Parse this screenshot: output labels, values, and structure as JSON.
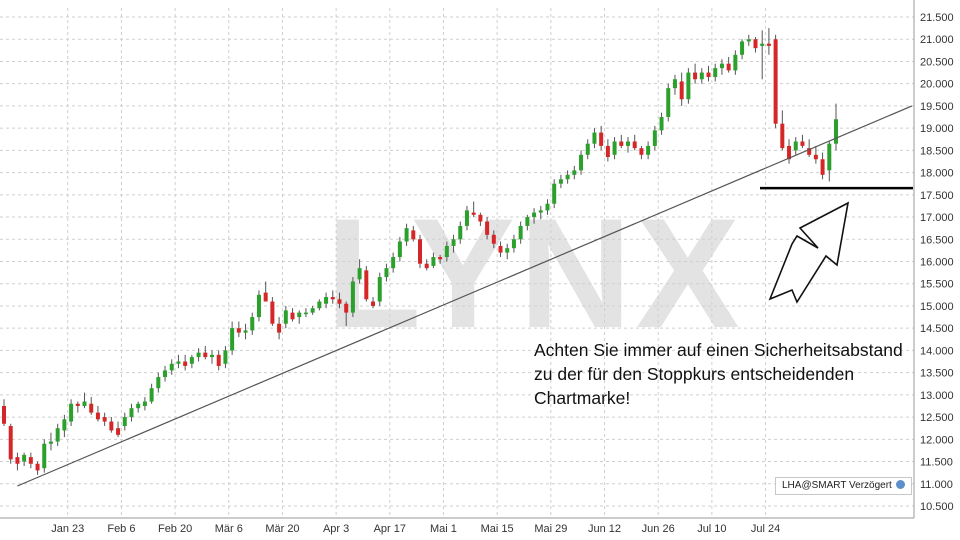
{
  "chart_data": {
    "type": "candlestick",
    "watermark": "LYNX",
    "y_ticks": [
      "10.500",
      "11.000",
      "11.500",
      "12.000",
      "12.500",
      "13.000",
      "13.500",
      "14.000",
      "14.500",
      "15.000",
      "15.500",
      "16.000",
      "16.500",
      "17.000",
      "17.500",
      "18.000",
      "18.500",
      "19.000",
      "19.500",
      "20.000",
      "20.500",
      "21.000",
      "21.500"
    ],
    "ylim": [
      10.3,
      21.7
    ],
    "x_ticks": [
      "Jan 23",
      "Feb 6",
      "Feb 20",
      "Mär 6",
      "Mär 20",
      "Apr 3",
      "Apr 17",
      "Mai 1",
      "Mai 15",
      "Mai 29",
      "Jun 12",
      "Jun 26",
      "Jul 10",
      "Jul 24"
    ],
    "grid": true,
    "colors": {
      "up": "#2ca02c",
      "down": "#d62728",
      "grid": "#cfcfcf",
      "line": "#555555"
    },
    "candles": [
      {
        "o": 12.75,
        "h": 12.9,
        "l": 12.3,
        "c": 12.35
      },
      {
        "o": 12.3,
        "h": 12.35,
        "l": 11.45,
        "c": 11.55
      },
      {
        "o": 11.6,
        "h": 11.7,
        "l": 11.3,
        "c": 11.45
      },
      {
        "o": 11.5,
        "h": 11.7,
        "l": 11.4,
        "c": 11.65
      },
      {
        "o": 11.6,
        "h": 11.7,
        "l": 11.35,
        "c": 11.45
      },
      {
        "o": 11.45,
        "h": 11.5,
        "l": 11.2,
        "c": 11.3
      },
      {
        "o": 11.35,
        "h": 12.0,
        "l": 11.25,
        "c": 11.9
      },
      {
        "o": 11.9,
        "h": 12.15,
        "l": 11.75,
        "c": 11.95
      },
      {
        "o": 11.95,
        "h": 12.35,
        "l": 11.85,
        "c": 12.25
      },
      {
        "o": 12.2,
        "h": 12.55,
        "l": 12.05,
        "c": 12.45
      },
      {
        "o": 12.4,
        "h": 12.9,
        "l": 12.3,
        "c": 12.8
      },
      {
        "o": 12.8,
        "h": 12.85,
        "l": 12.6,
        "c": 12.75
      },
      {
        "o": 12.75,
        "h": 13.05,
        "l": 12.7,
        "c": 12.85
      },
      {
        "o": 12.8,
        "h": 12.95,
        "l": 12.55,
        "c": 12.6
      },
      {
        "o": 12.6,
        "h": 12.75,
        "l": 12.4,
        "c": 12.45
      },
      {
        "o": 12.5,
        "h": 12.6,
        "l": 12.3,
        "c": 12.4
      },
      {
        "o": 12.4,
        "h": 12.5,
        "l": 12.15,
        "c": 12.2
      },
      {
        "o": 12.25,
        "h": 12.4,
        "l": 12.05,
        "c": 12.1
      },
      {
        "o": 12.3,
        "h": 12.6,
        "l": 12.2,
        "c": 12.5
      },
      {
        "o": 12.5,
        "h": 12.8,
        "l": 12.4,
        "c": 12.7
      },
      {
        "o": 12.7,
        "h": 12.85,
        "l": 12.6,
        "c": 12.8
      },
      {
        "o": 12.75,
        "h": 12.95,
        "l": 12.65,
        "c": 12.85
      },
      {
        "o": 12.85,
        "h": 13.25,
        "l": 12.8,
        "c": 13.15
      },
      {
        "o": 13.15,
        "h": 13.5,
        "l": 13.05,
        "c": 13.4
      },
      {
        "o": 13.4,
        "h": 13.65,
        "l": 13.3,
        "c": 13.55
      },
      {
        "o": 13.55,
        "h": 13.8,
        "l": 13.45,
        "c": 13.7
      },
      {
        "o": 13.7,
        "h": 13.9,
        "l": 13.6,
        "c": 13.75
      },
      {
        "o": 13.75,
        "h": 13.9,
        "l": 13.55,
        "c": 13.65
      },
      {
        "o": 13.7,
        "h": 13.9,
        "l": 13.6,
        "c": 13.85
      },
      {
        "o": 13.85,
        "h": 14.05,
        "l": 13.75,
        "c": 13.95
      },
      {
        "o": 13.95,
        "h": 14.1,
        "l": 13.8,
        "c": 13.85
      },
      {
        "o": 13.85,
        "h": 14.0,
        "l": 13.7,
        "c": 13.9
      },
      {
        "o": 13.9,
        "h": 14.0,
        "l": 13.55,
        "c": 13.65
      },
      {
        "o": 13.7,
        "h": 14.1,
        "l": 13.6,
        "c": 14.0
      },
      {
        "o": 14.0,
        "h": 14.65,
        "l": 13.9,
        "c": 14.5
      },
      {
        "o": 14.5,
        "h": 14.65,
        "l": 14.3,
        "c": 14.4
      },
      {
        "o": 14.4,
        "h": 14.6,
        "l": 14.25,
        "c": 14.45
      },
      {
        "o": 14.45,
        "h": 14.85,
        "l": 14.35,
        "c": 14.75
      },
      {
        "o": 14.75,
        "h": 15.35,
        "l": 14.65,
        "c": 15.25
      },
      {
        "o": 15.3,
        "h": 15.55,
        "l": 15.1,
        "c": 15.1
      },
      {
        "o": 15.1,
        "h": 15.2,
        "l": 14.55,
        "c": 14.6
      },
      {
        "o": 14.6,
        "h": 14.75,
        "l": 14.25,
        "c": 14.4
      },
      {
        "o": 14.6,
        "h": 15.0,
        "l": 14.5,
        "c": 14.9
      },
      {
        "o": 14.85,
        "h": 14.95,
        "l": 14.65,
        "c": 14.7
      },
      {
        "o": 14.75,
        "h": 14.9,
        "l": 14.6,
        "c": 14.85
      },
      {
        "o": 14.85,
        "h": 14.95,
        "l": 14.75,
        "c": 14.85
      },
      {
        "o": 14.85,
        "h": 15.0,
        "l": 14.8,
        "c": 14.95
      },
      {
        "o": 14.95,
        "h": 15.15,
        "l": 14.9,
        "c": 15.1
      },
      {
        "o": 15.05,
        "h": 15.3,
        "l": 14.95,
        "c": 15.2
      },
      {
        "o": 15.2,
        "h": 15.35,
        "l": 15.05,
        "c": 15.15
      },
      {
        "o": 15.15,
        "h": 15.3,
        "l": 14.95,
        "c": 15.05
      },
      {
        "o": 15.05,
        "h": 15.1,
        "l": 14.55,
        "c": 14.85
      },
      {
        "o": 14.85,
        "h": 15.65,
        "l": 14.75,
        "c": 15.55
      },
      {
        "o": 15.6,
        "h": 16.05,
        "l": 15.5,
        "c": 15.85
      },
      {
        "o": 15.8,
        "h": 15.9,
        "l": 15.1,
        "c": 15.15
      },
      {
        "o": 15.1,
        "h": 15.2,
        "l": 14.95,
        "c": 15.0
      },
      {
        "o": 15.1,
        "h": 15.75,
        "l": 15.0,
        "c": 15.65
      },
      {
        "o": 15.65,
        "h": 15.95,
        "l": 15.55,
        "c": 15.85
      },
      {
        "o": 15.85,
        "h": 16.2,
        "l": 15.75,
        "c": 16.1
      },
      {
        "o": 16.1,
        "h": 16.55,
        "l": 16.0,
        "c": 16.45
      },
      {
        "o": 16.45,
        "h": 16.85,
        "l": 16.35,
        "c": 16.75
      },
      {
        "o": 16.7,
        "h": 16.8,
        "l": 16.45,
        "c": 16.5
      },
      {
        "o": 16.5,
        "h": 16.6,
        "l": 15.85,
        "c": 15.95
      },
      {
        "o": 15.95,
        "h": 16.05,
        "l": 15.8,
        "c": 15.85
      },
      {
        "o": 15.9,
        "h": 16.2,
        "l": 15.85,
        "c": 16.1
      },
      {
        "o": 16.1,
        "h": 16.15,
        "l": 15.95,
        "c": 16.05
      },
      {
        "o": 16.1,
        "h": 16.45,
        "l": 16.0,
        "c": 16.35
      },
      {
        "o": 16.35,
        "h": 16.6,
        "l": 16.2,
        "c": 16.5
      },
      {
        "o": 16.5,
        "h": 16.9,
        "l": 16.4,
        "c": 16.8
      },
      {
        "o": 16.8,
        "h": 17.25,
        "l": 16.7,
        "c": 17.15
      },
      {
        "o": 17.1,
        "h": 17.35,
        "l": 17.0,
        "c": 17.05
      },
      {
        "o": 17.05,
        "h": 17.1,
        "l": 16.8,
        "c": 16.9
      },
      {
        "o": 16.9,
        "h": 17.0,
        "l": 16.5,
        "c": 16.6
      },
      {
        "o": 16.6,
        "h": 16.7,
        "l": 16.3,
        "c": 16.4
      },
      {
        "o": 16.35,
        "h": 16.45,
        "l": 16.1,
        "c": 16.2
      },
      {
        "o": 16.2,
        "h": 16.4,
        "l": 16.05,
        "c": 16.3
      },
      {
        "o": 16.3,
        "h": 16.6,
        "l": 16.2,
        "c": 16.5
      },
      {
        "o": 16.5,
        "h": 16.9,
        "l": 16.4,
        "c": 16.8
      },
      {
        "o": 16.8,
        "h": 17.05,
        "l": 16.7,
        "c": 17.0
      },
      {
        "o": 17.0,
        "h": 17.2,
        "l": 16.85,
        "c": 17.1
      },
      {
        "o": 17.1,
        "h": 17.25,
        "l": 16.95,
        "c": 17.15
      },
      {
        "o": 17.15,
        "h": 17.4,
        "l": 17.05,
        "c": 17.3
      },
      {
        "o": 17.3,
        "h": 17.85,
        "l": 17.2,
        "c": 17.75
      },
      {
        "o": 17.75,
        "h": 17.95,
        "l": 17.65,
        "c": 17.85
      },
      {
        "o": 17.85,
        "h": 18.05,
        "l": 17.75,
        "c": 17.95
      },
      {
        "o": 17.95,
        "h": 18.15,
        "l": 17.85,
        "c": 18.05
      },
      {
        "o": 18.05,
        "h": 18.5,
        "l": 17.95,
        "c": 18.4
      },
      {
        "o": 18.4,
        "h": 18.75,
        "l": 18.3,
        "c": 18.65
      },
      {
        "o": 18.65,
        "h": 19.0,
        "l": 18.55,
        "c": 18.9
      },
      {
        "o": 18.9,
        "h": 19.05,
        "l": 18.5,
        "c": 18.6
      },
      {
        "o": 18.6,
        "h": 18.75,
        "l": 18.25,
        "c": 18.35
      },
      {
        "o": 18.4,
        "h": 18.8,
        "l": 18.3,
        "c": 18.7
      },
      {
        "o": 18.7,
        "h": 18.85,
        "l": 18.55,
        "c": 18.6
      },
      {
        "o": 18.6,
        "h": 18.8,
        "l": 18.45,
        "c": 18.7
      },
      {
        "o": 18.7,
        "h": 18.85,
        "l": 18.5,
        "c": 18.55
      },
      {
        "o": 18.55,
        "h": 18.6,
        "l": 18.3,
        "c": 18.4
      },
      {
        "o": 18.4,
        "h": 18.7,
        "l": 18.3,
        "c": 18.6
      },
      {
        "o": 18.6,
        "h": 19.05,
        "l": 18.5,
        "c": 18.95
      },
      {
        "o": 18.95,
        "h": 19.35,
        "l": 18.85,
        "c": 19.25
      },
      {
        "o": 19.25,
        "h": 20.0,
        "l": 19.15,
        "c": 19.9
      },
      {
        "o": 19.9,
        "h": 20.2,
        "l": 19.75,
        "c": 20.1
      },
      {
        "o": 20.05,
        "h": 20.25,
        "l": 19.5,
        "c": 19.65
      },
      {
        "o": 19.65,
        "h": 20.35,
        "l": 19.55,
        "c": 20.25
      },
      {
        "o": 20.25,
        "h": 20.45,
        "l": 20.0,
        "c": 20.1
      },
      {
        "o": 20.1,
        "h": 20.35,
        "l": 20.0,
        "c": 20.25
      },
      {
        "o": 20.25,
        "h": 20.4,
        "l": 20.05,
        "c": 20.15
      },
      {
        "o": 20.15,
        "h": 20.45,
        "l": 20.05,
        "c": 20.35
      },
      {
        "o": 20.35,
        "h": 20.55,
        "l": 20.2,
        "c": 20.45
      },
      {
        "o": 20.45,
        "h": 20.6,
        "l": 20.25,
        "c": 20.3
      },
      {
        "o": 20.3,
        "h": 20.75,
        "l": 20.2,
        "c": 20.65
      },
      {
        "o": 20.65,
        "h": 21.0,
        "l": 20.55,
        "c": 20.95
      },
      {
        "o": 20.95,
        "h": 21.1,
        "l": 20.85,
        "c": 21.0
      },
      {
        "o": 21.0,
        "h": 21.05,
        "l": 20.7,
        "c": 20.8
      },
      {
        "o": 20.85,
        "h": 21.2,
        "l": 20.1,
        "c": 20.9
      },
      {
        "o": 20.9,
        "h": 21.25,
        "l": 20.65,
        "c": 20.85
      },
      {
        "o": 21.0,
        "h": 21.1,
        "l": 19.0,
        "c": 19.1
      },
      {
        "o": 19.1,
        "h": 19.4,
        "l": 18.5,
        "c": 18.55
      },
      {
        "o": 18.6,
        "h": 18.75,
        "l": 18.2,
        "c": 18.3
      },
      {
        "o": 18.5,
        "h": 18.8,
        "l": 18.4,
        "c": 18.7
      },
      {
        "o": 18.7,
        "h": 18.85,
        "l": 18.55,
        "c": 18.6
      },
      {
        "o": 18.55,
        "h": 18.75,
        "l": 18.35,
        "c": 18.4
      },
      {
        "o": 18.4,
        "h": 18.6,
        "l": 18.2,
        "c": 18.3
      },
      {
        "o": 18.3,
        "h": 18.45,
        "l": 17.85,
        "c": 17.95
      },
      {
        "o": 18.05,
        "h": 18.7,
        "l": 17.8,
        "c": 18.65
      },
      {
        "o": 18.65,
        "h": 19.55,
        "l": 18.5,
        "c": 19.2
      }
    ],
    "trendline": {
      "from": {
        "i": 0.5,
        "v": 10.95
      },
      "to": {
        "i": 128,
        "v": 19.5
      }
    },
    "support_level": 17.65,
    "support_from_index": 116,
    "annotation_lines": [
      "Achten Sie immer auf einen Sicherheitsabstand",
      "zu der für den Stoppkurs entscheidenden",
      "Chartmarke!"
    ],
    "source_label": "LHA@SMART Verzögert"
  }
}
